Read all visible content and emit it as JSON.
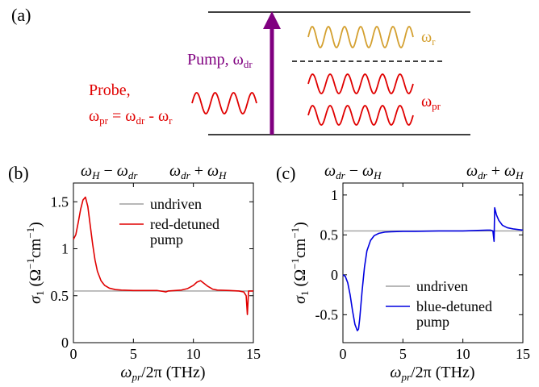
{
  "panel_a": {
    "label": "(a)",
    "pump_text": "Pump, ω",
    "pump_sub": "dr",
    "probe_line1": "Probe,",
    "probe_eq": "ωpr = ωdr - ωr",
    "probe_eq_parts": [
      "ω",
      "pr",
      " = ω",
      "dr",
      " - ω",
      "r"
    ],
    "omega_r": "ω",
    "omega_r_sub": "r",
    "omega_pr": "ω",
    "omega_pr_sub": "pr",
    "colors": {
      "pump": "#800080",
      "probe": "#e00000",
      "raman": "#d4a030"
    }
  },
  "chart_data": [
    {
      "type": "line",
      "panel_label": "(b)",
      "top_left": "ωH − ωdr",
      "top_right": "ωdr + ωH",
      "xlabel": "ωpr/2π (THz)",
      "ylabel": "σ1 (Ω−1cm−1)",
      "xlim": [
        0,
        15
      ],
      "ylim": [
        0,
        1.7
      ],
      "xticks": [
        "0",
        "5",
        "10",
        "15"
      ],
      "yticks": [
        "0",
        "0.5",
        "1",
        "1.5"
      ],
      "ytick_values": [
        0,
        0.5,
        1,
        1.5
      ],
      "legend": [
        "undriven",
        "red-detuned",
        "pump"
      ],
      "series": [
        {
          "name": "undriven",
          "color": "#a0a0a0",
          "x": [
            0,
            15
          ],
          "y": [
            0.55,
            0.55
          ]
        },
        {
          "name": "red-detuned pump",
          "color": "#e00000",
          "x": [
            0,
            0.2,
            0.4,
            0.6,
            0.8,
            1.0,
            1.2,
            1.4,
            1.6,
            1.8,
            2.0,
            2.3,
            2.6,
            3.0,
            3.5,
            4,
            5,
            6,
            7,
            7.5,
            7.7,
            7.9,
            8.5,
            9,
            9.5,
            10,
            10.3,
            10.6,
            10.9,
            11.2,
            11.6,
            12,
            13,
            13.8,
            14.2,
            14.4,
            14.5,
            14.6,
            15
          ],
          "y": [
            1.1,
            1.15,
            1.28,
            1.42,
            1.52,
            1.55,
            1.45,
            1.25,
            1.05,
            0.88,
            0.76,
            0.66,
            0.61,
            0.58,
            0.565,
            0.56,
            0.555,
            0.555,
            0.555,
            0.545,
            0.54,
            0.55,
            0.555,
            0.56,
            0.575,
            0.61,
            0.645,
            0.66,
            0.63,
            0.6,
            0.57,
            0.56,
            0.555,
            0.55,
            0.54,
            0.5,
            0.3,
            0.55,
            0.55
          ]
        }
      ]
    },
    {
      "type": "line",
      "panel_label": "(c)",
      "top_left": "ωdr − ωH",
      "top_right": "ωdr + ωH",
      "xlabel": "ωpr/2π (THz)",
      "ylabel": "σ1 (Ω−1cm−1)",
      "xlim": [
        0,
        15
      ],
      "ylim": [
        -0.85,
        1.15
      ],
      "xticks": [
        "0",
        "5",
        "10",
        "15"
      ],
      "yticks": [
        "-0.5",
        "0",
        "0.5",
        "1"
      ],
      "ytick_values": [
        -0.5,
        0,
        0.5,
        1
      ],
      "legend": [
        "undriven",
        "blue-detuned",
        "pump"
      ],
      "series": [
        {
          "name": "undriven",
          "color": "#a0a0a0",
          "x": [
            0,
            15
          ],
          "y": [
            0.55,
            0.55
          ]
        },
        {
          "name": "blue-detuned pump",
          "color": "#0000e0",
          "x": [
            0,
            0.2,
            0.4,
            0.6,
            0.8,
            1.0,
            1.2,
            1.3,
            1.4,
            1.6,
            1.8,
            2.0,
            2.3,
            2.6,
            3.0,
            3.5,
            4,
            5,
            6,
            8,
            10,
            11,
            12,
            12.3,
            12.5,
            12.6,
            12.65,
            12.8,
            13.0,
            13.3,
            13.7,
            14.2,
            15
          ],
          "y": [
            0.0,
            -0.02,
            -0.1,
            -0.25,
            -0.45,
            -0.62,
            -0.7,
            -0.68,
            -0.55,
            -0.2,
            0.1,
            0.3,
            0.43,
            0.49,
            0.52,
            0.535,
            0.54,
            0.545,
            0.545,
            0.55,
            0.55,
            0.555,
            0.56,
            0.56,
            0.55,
            0.42,
            0.84,
            0.75,
            0.68,
            0.62,
            0.59,
            0.575,
            0.56
          ]
        }
      ]
    }
  ]
}
